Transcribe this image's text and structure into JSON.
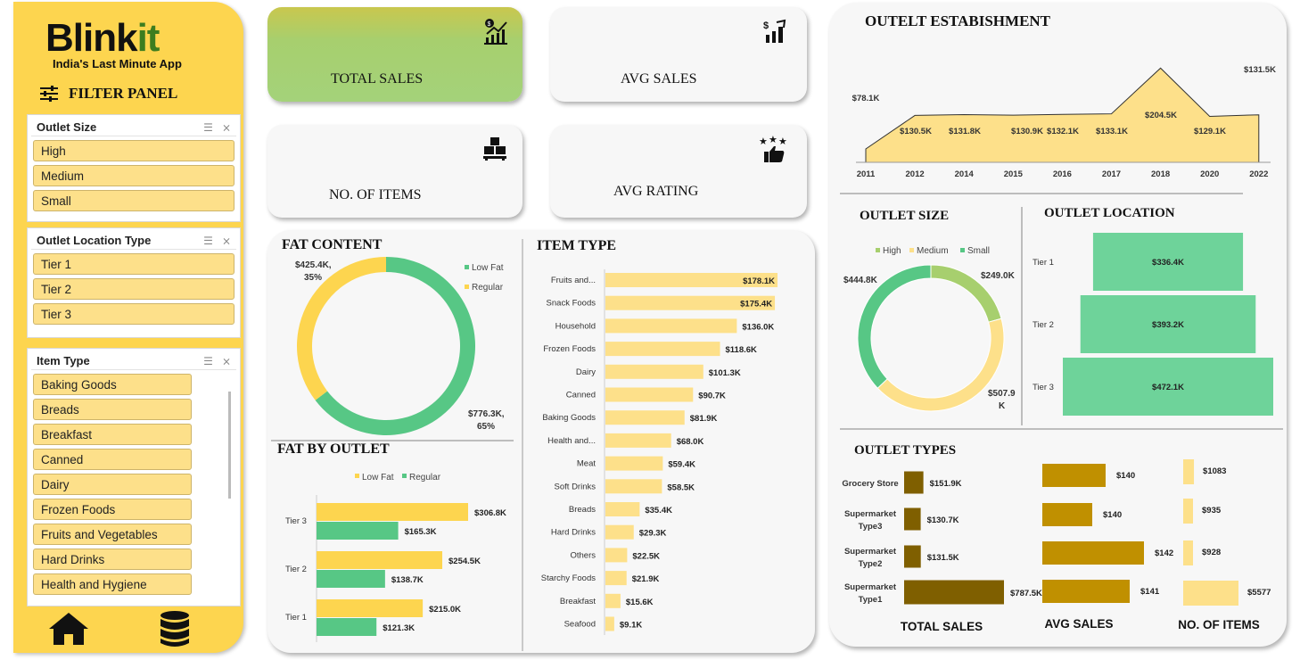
{
  "sidebar": {
    "logo_main": "Blink",
    "logo_accent": "it",
    "tagline": "India's Last Minute App",
    "filter_title": "FILTER PANEL",
    "slicers": [
      {
        "title": "Outlet Size",
        "items": [
          "High",
          "Medium",
          "Small"
        ]
      },
      {
        "title": "Outlet Location Type",
        "items": [
          "Tier 1",
          "Tier 2",
          "Tier 3"
        ]
      },
      {
        "title": "Item Type",
        "items": [
          "Baking Goods",
          "Breads",
          "Breakfast",
          "Canned",
          "Dairy",
          "Frozen Foods",
          "Fruits and Vegetables",
          "Hard Drinks",
          "Health and Hygiene"
        ]
      }
    ]
  },
  "kpis": {
    "total_sales": "TOTAL SALES",
    "avg_sales": "AVG SALES",
    "no_of_items": "NO. OF ITEMS",
    "avg_rating": "AVG RATING"
  },
  "colors": {
    "yellow": "#fdd54f",
    "light_yellow": "#fde08a",
    "green": "#57c785",
    "light_green": "#6ed39a",
    "olive": "#a7cf6e",
    "dark_gold": "#7f5f00",
    "gold": "#c09000"
  },
  "fat_content": {
    "title": "FAT CONTENT",
    "chart_data": {
      "type": "pie",
      "legend": [
        "Low Fat",
        "Regular"
      ],
      "values": [
        776.3,
        425.4
      ],
      "labels": [
        "$776.3K, 65%",
        "$425.4K, 35%"
      ],
      "label_low": [
        "$776.3K,",
        "65%"
      ],
      "label_reg": [
        "$425.4K,",
        "35%"
      ]
    }
  },
  "fat_by_outlet": {
    "title": "FAT BY OUTLET",
    "chart_data": {
      "type": "bar",
      "legend": [
        "Low Fat",
        "Regular"
      ],
      "categories": [
        "Tier 3",
        "Tier 2",
        "Tier 1"
      ],
      "series": [
        {
          "name": "Low Fat",
          "values": [
            306.8,
            254.5,
            215.0
          ],
          "labels": [
            "$306.8K",
            "$254.5K",
            "$215.0K"
          ]
        },
        {
          "name": "Regular",
          "values": [
            165.3,
            138.7,
            121.3
          ],
          "labels": [
            "$165.3K",
            "$138.7K",
            "$121.3K"
          ]
        }
      ]
    }
  },
  "item_type": {
    "title": "ITEM TYPE",
    "chart_data": {
      "type": "bar",
      "categories": [
        "Fruits and...",
        "Snack Foods",
        "Household",
        "Frozen Foods",
        "Dairy",
        "Canned",
        "Baking Goods",
        "Health and...",
        "Meat",
        "Soft Drinks",
        "Breads",
        "Hard Drinks",
        "Others",
        "Starchy Foods",
        "Breakfast",
        "Seafood"
      ],
      "values": [
        178.1,
        175.4,
        136.0,
        118.6,
        101.3,
        90.7,
        81.9,
        68.0,
        59.4,
        58.5,
        35.4,
        29.3,
        22.5,
        21.9,
        15.6,
        9.1
      ],
      "labels": [
        "$178.1K",
        "$175.4K",
        "$136.0K",
        "$118.6K",
        "$101.3K",
        "$90.7K",
        "$81.9K",
        "$68.0K",
        "$59.4K",
        "$58.5K",
        "$35.4K",
        "$29.3K",
        "$22.5K",
        "$21.9K",
        "$15.6K",
        "$9.1K"
      ]
    }
  },
  "outlet_establishment": {
    "title": "OUTELT ESTABISHMENT",
    "chart_data": {
      "type": "area",
      "x": [
        "2011",
        "2012",
        "2014",
        "2015",
        "2016",
        "2017",
        "2018",
        "2020",
        "2022"
      ],
      "values": [
        78.1,
        130.5,
        131.8,
        130.9,
        132.1,
        133.1,
        204.5,
        129.1,
        131.5
      ],
      "labels": [
        "$78.1K",
        "$130.5K",
        "$131.8K",
        "$130.9K",
        "$132.1K",
        "$133.1K",
        "$204.5K",
        "$129.1K",
        "$131.5K"
      ]
    }
  },
  "outlet_size": {
    "title": "OUTLET SIZE",
    "chart_data": {
      "type": "pie",
      "legend": [
        "High",
        "Medium",
        "Small"
      ],
      "values": [
        249.0,
        507.9,
        444.8
      ],
      "label_high": "$249.0K",
      "label_med": [
        "$507.9",
        "K"
      ],
      "label_small": "$444.8K"
    }
  },
  "outlet_location": {
    "title": "OUTLET LOCATION",
    "chart_data": {
      "type": "bar",
      "categories": [
        "Tier 1",
        "Tier 2",
        "Tier 3"
      ],
      "values": [
        336.4,
        393.2,
        472.1
      ],
      "labels": [
        "$336.4K",
        "$393.2K",
        "$472.1K"
      ]
    }
  },
  "outlet_types": {
    "title": "OUTLET TYPES",
    "categories": [
      [
        "Grocery Store"
      ],
      [
        "Supermarket",
        "Type3"
      ],
      [
        "Supermarket",
        "Type2"
      ],
      [
        "Supermarket",
        "Type1"
      ]
    ],
    "chart_data": [
      {
        "type": "bar",
        "title": "TOTAL SALES",
        "values": [
          151.9,
          130.7,
          131.5,
          787.5
        ],
        "labels": [
          "$151.9K",
          "$130.7K",
          "$131.5K",
          "$787.5K"
        ]
      },
      {
        "type": "bar",
        "title": "AVG SALES",
        "values": [
          140,
          140,
          142,
          141
        ],
        "labels": [
          "$140",
          "$140",
          "$142",
          "$141"
        ]
      },
      {
        "type": "bar",
        "title": "NO. OF ITEMS",
        "values": [
          1083,
          935,
          928,
          5577
        ],
        "labels": [
          "$1083",
          "$935",
          "$928",
          "$5577"
        ]
      }
    ]
  }
}
